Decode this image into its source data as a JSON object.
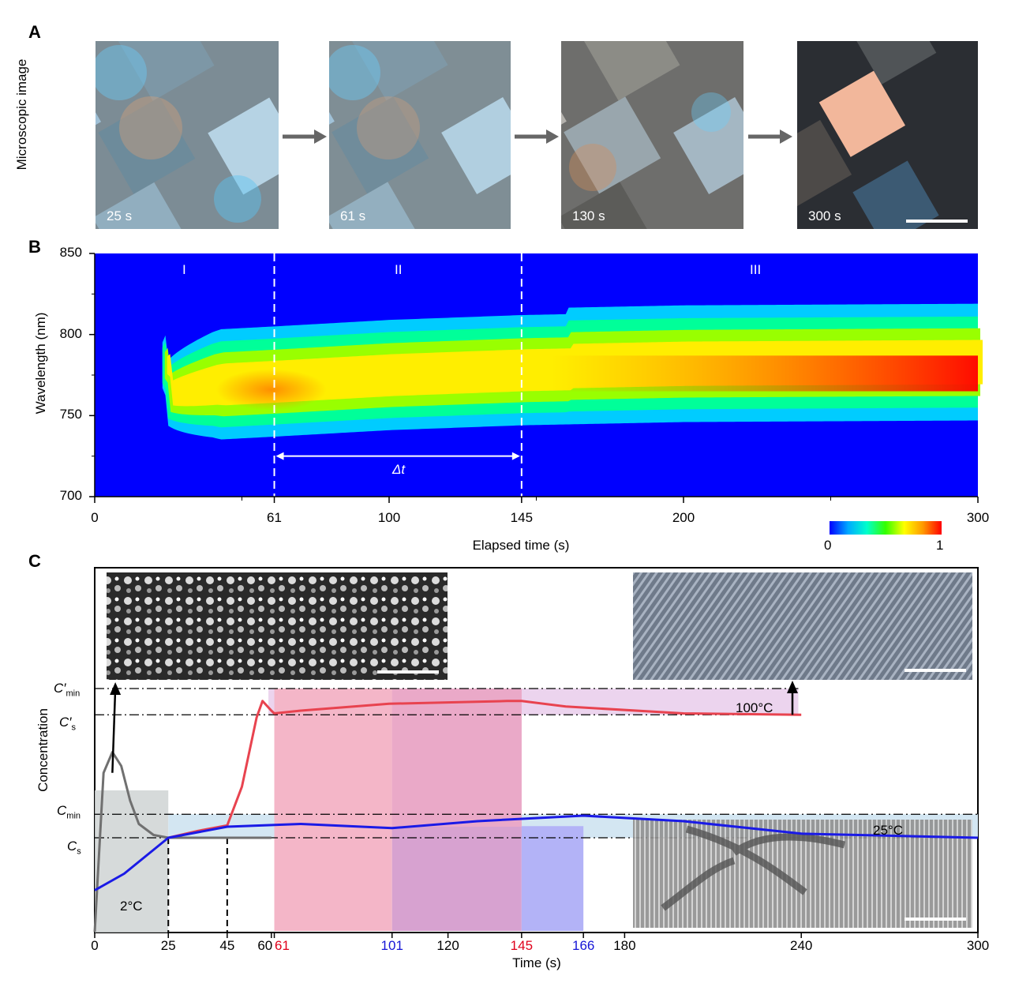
{
  "panels": {
    "a": "A",
    "b": "B",
    "c": "C"
  },
  "panel_a": {
    "ylabel": "Microscopic image",
    "frames": [
      "25 s",
      "61 s",
      "130 s",
      "300 s"
    ]
  },
  "panel_b": {
    "ylabel": "Wavelength (nm)",
    "xlabel": "Elapsed time (s)",
    "regions": [
      "I",
      "II",
      "III"
    ],
    "delta_label": "Δt",
    "colorbar": {
      "min": "0",
      "max": "1"
    }
  },
  "panel_c": {
    "ylabel": "Concentration",
    "xlabel": "Time (s)",
    "annotations": {
      "hot": "100°C",
      "room": "25°C",
      "cold": "2°C"
    },
    "conc_levels": [
      {
        "name": "C′",
        "sub": "min"
      },
      {
        "name": "C′",
        "sub": "s"
      },
      {
        "name": "C",
        "sub": "min"
      },
      {
        "name": "C",
        "sub": "s"
      }
    ]
  },
  "colors": {
    "red_curve": "#e8434f",
    "blue_curve": "#1a1ae6",
    "gray_curve": "#707070"
  },
  "chart_data": [
    {
      "type": "heatmap",
      "title": "",
      "xlabel": "Elapsed time (s)",
      "ylabel": "Wavelength (nm)",
      "xlim": [
        0,
        300
      ],
      "ylim": [
        700,
        850
      ],
      "xticks": [
        "0",
        "61",
        "100",
        "145",
        "200",
        "300"
      ],
      "yticks": [
        "700",
        "750",
        "800",
        "850"
      ],
      "dashed_lines_x": [
        61,
        145
      ],
      "peak_center_nm": {
        "t": [
          25,
          40,
          61,
          100,
          145,
          200,
          300
        ],
        "nm": [
          760,
          765,
          767,
          771,
          774,
          776,
          777
        ]
      },
      "colorbar_range": [
        0,
        1
      ]
    },
    {
      "type": "line",
      "title": "",
      "xlabel": "Time (s)",
      "ylabel": "Concentration",
      "xlim": [
        0,
        300
      ],
      "xticks": [
        "0",
        "25",
        "45",
        "60",
        "61",
        "101",
        "120",
        "145",
        "166",
        "180",
        "240",
        "300"
      ],
      "series": [
        {
          "name": "2°C",
          "x": [
            0,
            3,
            6,
            9,
            12,
            15,
            20,
            25,
            30,
            40,
            60
          ],
          "y": [
            0.0,
            1.15,
            1.3,
            1.2,
            0.95,
            0.78,
            0.7,
            0.68,
            0.68,
            0.68,
            0.68
          ]
        },
        {
          "name": "100°C",
          "x": [
            25,
            35,
            45,
            50,
            55,
            57,
            60,
            61,
            70,
            100,
            140,
            145,
            160,
            200,
            240
          ],
          "y": [
            0.68,
            0.73,
            0.77,
            1.05,
            1.55,
            1.67,
            1.6,
            1.58,
            1.6,
            1.65,
            1.67,
            1.67,
            1.63,
            1.58,
            1.57
          ]
        },
        {
          "name": "25°C",
          "x": [
            0,
            10,
            25,
            45,
            70,
            101,
            130,
            166,
            200,
            240,
            300
          ],
          "y": [
            0.3,
            0.42,
            0.68,
            0.76,
            0.78,
            0.75,
            0.8,
            0.84,
            0.8,
            0.71,
            0.68
          ]
        }
      ],
      "levels": {
        "C_s": 0.68,
        "C_min": 0.85,
        "C'_s": 1.57,
        "C'_min": 1.76
      },
      "shaded_intervals": [
        [
          61,
          101
        ],
        [
          101,
          145
        ],
        [
          145,
          166
        ]
      ]
    }
  ]
}
